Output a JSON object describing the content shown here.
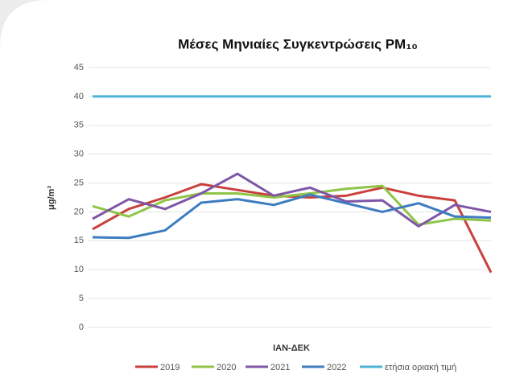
{
  "chart_data": {
    "type": "line",
    "title": "Μέσες Μηνιαίες Συγκεντρώσεις PM₁₀",
    "x_label": "ΙΑΝ-ΔΕΚ",
    "y_label": "μg/m³",
    "ylim": [
      0,
      45
    ],
    "yticks": [
      0,
      5,
      10,
      15,
      20,
      25,
      30,
      35,
      40,
      45
    ],
    "grid": true,
    "legend": "bottom",
    "series": [
      {
        "name": "2019",
        "color": "#c9403d",
        "values": [
          17,
          20.5,
          22.5,
          24.8,
          23.8,
          22.8,
          22.5,
          22.8,
          24.2,
          22.8,
          22,
          9.5
        ]
      },
      {
        "name": "2020",
        "color": "#8fc447",
        "values": [
          21,
          19.2,
          22,
          23.2,
          23.2,
          22.5,
          23.2,
          24,
          24.5,
          17.8,
          18.8,
          18.5
        ]
      },
      {
        "name": "2021",
        "color": "#7e57a6",
        "values": [
          18.8,
          22.2,
          20.5,
          23.2,
          26.6,
          22.8,
          24.2,
          21.8,
          22,
          17.5,
          21.2,
          20
        ]
      },
      {
        "name": "2022",
        "color": "#3d7cc0",
        "values": [
          15.6,
          15.5,
          16.8,
          21.6,
          22.2,
          21.2,
          23,
          21.5,
          20,
          21.5,
          19.2,
          19
        ]
      },
      {
        "name": "ετήσια οριακή τιμή",
        "color": "#4ab3d6",
        "values": [
          40,
          40,
          40,
          40,
          40,
          40,
          40,
          40,
          40,
          40,
          40,
          40
        ]
      }
    ]
  }
}
